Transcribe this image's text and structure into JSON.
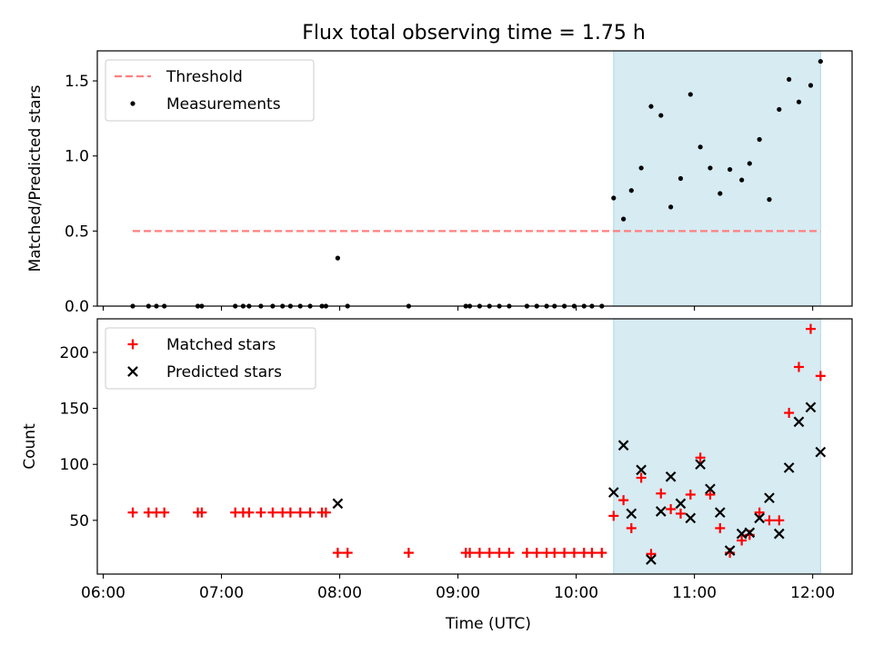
{
  "title": "Flux total observing time = 1.75 h",
  "chart_data": [
    {
      "type": "scatter",
      "ylabel": "Matched/Predicted stars",
      "xlabel": "",
      "xlim": [
        "05:57",
        "12:20"
      ],
      "ylim": [
        0.0,
        1.7
      ],
      "yticks": [
        0.0,
        0.5,
        1.0,
        1.5
      ],
      "ytick_labels": [
        "0.0",
        "0.5",
        "1.0",
        "1.5"
      ],
      "xticks": [
        "06:00",
        "07:00",
        "08:00",
        "09:00",
        "10:00",
        "11:00",
        "12:00"
      ],
      "shaded_span": [
        "10:19",
        "12:04"
      ],
      "legend_position": "upper-left",
      "grid": false,
      "series": [
        {
          "name": "Threshold",
          "kind": "dashed-line",
          "color": "#ff7f7f",
          "points": [
            [
              "06:15",
              0.5
            ],
            [
              "12:04",
              0.5
            ]
          ]
        },
        {
          "name": "Measurements",
          "kind": "dot",
          "color": "#000000",
          "points": [
            [
              "06:15",
              0.0
            ],
            [
              "06:23",
              0.0
            ],
            [
              "06:27",
              0.0
            ],
            [
              "06:31",
              0.0
            ],
            [
              "06:48",
              0.0
            ],
            [
              "06:50",
              0.0
            ],
            [
              "07:07",
              0.0
            ],
            [
              "07:11",
              0.0
            ],
            [
              "07:14",
              0.0
            ],
            [
              "07:20",
              0.0
            ],
            [
              "07:26",
              0.0
            ],
            [
              "07:31",
              0.0
            ],
            [
              "07:35",
              0.0
            ],
            [
              "07:40",
              0.0
            ],
            [
              "07:45",
              0.0
            ],
            [
              "07:51",
              0.0
            ],
            [
              "07:53",
              0.0
            ],
            [
              "07:59",
              0.32
            ],
            [
              "08:04",
              0.0
            ],
            [
              "08:35",
              0.0
            ],
            [
              "09:04",
              0.0
            ],
            [
              "09:06",
              0.0
            ],
            [
              "09:11",
              0.0
            ],
            [
              "09:16",
              0.0
            ],
            [
              "09:21",
              0.0
            ],
            [
              "09:26",
              0.0
            ],
            [
              "09:35",
              0.0
            ],
            [
              "09:40",
              0.0
            ],
            [
              "09:45",
              0.0
            ],
            [
              "09:49",
              0.0
            ],
            [
              "09:54",
              0.0
            ],
            [
              "09:59",
              0.0
            ],
            [
              "10:04",
              0.0
            ],
            [
              "10:08",
              0.0
            ],
            [
              "10:13",
              0.0
            ],
            [
              "10:19",
              0.72
            ],
            [
              "10:24",
              0.58
            ],
            [
              "10:28",
              0.77
            ],
            [
              "10:33",
              0.92
            ],
            [
              "10:38",
              1.33
            ],
            [
              "10:43",
              1.27
            ],
            [
              "10:48",
              0.66
            ],
            [
              "10:53",
              0.85
            ],
            [
              "10:58",
              1.41
            ],
            [
              "11:03",
              1.06
            ],
            [
              "11:08",
              0.92
            ],
            [
              "11:13",
              0.75
            ],
            [
              "11:18",
              0.91
            ],
            [
              "11:24",
              0.84
            ],
            [
              "11:28",
              0.95
            ],
            [
              "11:33",
              1.11
            ],
            [
              "11:38",
              0.71
            ],
            [
              "11:43",
              1.31
            ],
            [
              "11:48",
              1.51
            ],
            [
              "11:53",
              1.36
            ],
            [
              "11:59",
              1.47
            ],
            [
              "12:04",
              1.63
            ]
          ]
        }
      ]
    },
    {
      "type": "scatter",
      "ylabel": "Count",
      "xlabel": "Time (UTC)",
      "xlim": [
        "05:57",
        "12:20"
      ],
      "ylim": [
        2,
        230
      ],
      "yticks": [
        50,
        100,
        150,
        200
      ],
      "ytick_labels": [
        "50",
        "100",
        "150",
        "200"
      ],
      "xticks": [
        "06:00",
        "07:00",
        "08:00",
        "09:00",
        "10:00",
        "11:00",
        "12:00"
      ],
      "xtick_labels": [
        "06:00",
        "07:00",
        "08:00",
        "09:00",
        "10:00",
        "11:00",
        "12:00"
      ],
      "shaded_span": [
        "10:19",
        "12:04"
      ],
      "legend_position": "upper-left",
      "grid": false,
      "series": [
        {
          "name": "Matched stars",
          "kind": "plus",
          "color": "#ff0000",
          "points": [
            [
              "06:15",
              57
            ],
            [
              "06:23",
              57
            ],
            [
              "06:27",
              57
            ],
            [
              "06:31",
              57
            ],
            [
              "06:48",
              57
            ],
            [
              "06:50",
              57
            ],
            [
              "07:07",
              57
            ],
            [
              "07:11",
              57
            ],
            [
              "07:14",
              57
            ],
            [
              "07:20",
              57
            ],
            [
              "07:26",
              57
            ],
            [
              "07:31",
              57
            ],
            [
              "07:35",
              57
            ],
            [
              "07:40",
              57
            ],
            [
              "07:45",
              57
            ],
            [
              "07:51",
              57
            ],
            [
              "07:53",
              57
            ],
            [
              "07:59",
              21
            ],
            [
              "08:04",
              21
            ],
            [
              "08:35",
              21
            ],
            [
              "09:04",
              21
            ],
            [
              "09:06",
              21
            ],
            [
              "09:11",
              21
            ],
            [
              "09:16",
              21
            ],
            [
              "09:21",
              21
            ],
            [
              "09:26",
              21
            ],
            [
              "09:35",
              21
            ],
            [
              "09:40",
              21
            ],
            [
              "09:45",
              21
            ],
            [
              "09:49",
              21
            ],
            [
              "09:54",
              21
            ],
            [
              "09:59",
              21
            ],
            [
              "10:04",
              21
            ],
            [
              "10:08",
              21
            ],
            [
              "10:13",
              21
            ],
            [
              "10:19",
              54
            ],
            [
              "10:24",
              68
            ],
            [
              "10:28",
              43
            ],
            [
              "10:33",
              88
            ],
            [
              "10:38",
              20
            ],
            [
              "10:43",
              74
            ],
            [
              "10:48",
              60
            ],
            [
              "10:53",
              56
            ],
            [
              "10:58",
              73
            ],
            [
              "11:03",
              106
            ],
            [
              "11:08",
              73
            ],
            [
              "11:13",
              43
            ],
            [
              "11:18",
              21
            ],
            [
              "11:24",
              32
            ],
            [
              "11:28",
              37
            ],
            [
              "11:33",
              57
            ],
            [
              "11:38",
              50
            ],
            [
              "11:43",
              50
            ],
            [
              "11:48",
              146
            ],
            [
              "11:53",
              187
            ],
            [
              "11:59",
              221
            ],
            [
              "12:04",
              179
            ]
          ]
        },
        {
          "name": "Predicted stars",
          "kind": "cross",
          "color": "#000000",
          "points": [
            [
              "07:59",
              65
            ],
            [
              "10:19",
              75
            ],
            [
              "10:24",
              117
            ],
            [
              "10:28",
              56
            ],
            [
              "10:33",
              95
            ],
            [
              "10:38",
              15
            ],
            [
              "10:43",
              58
            ],
            [
              "10:48",
              89
            ],
            [
              "10:53",
              65
            ],
            [
              "10:58",
              52
            ],
            [
              "11:03",
              100
            ],
            [
              "11:08",
              78
            ],
            [
              "11:13",
              57
            ],
            [
              "11:18",
              23
            ],
            [
              "11:24",
              38
            ],
            [
              "11:28",
              39
            ],
            [
              "11:33",
              52
            ],
            [
              "11:38",
              70
            ],
            [
              "11:43",
              38
            ],
            [
              "11:48",
              97
            ],
            [
              "11:53",
              138
            ],
            [
              "11:59",
              151
            ],
            [
              "12:04",
              111
            ]
          ]
        }
      ]
    }
  ]
}
